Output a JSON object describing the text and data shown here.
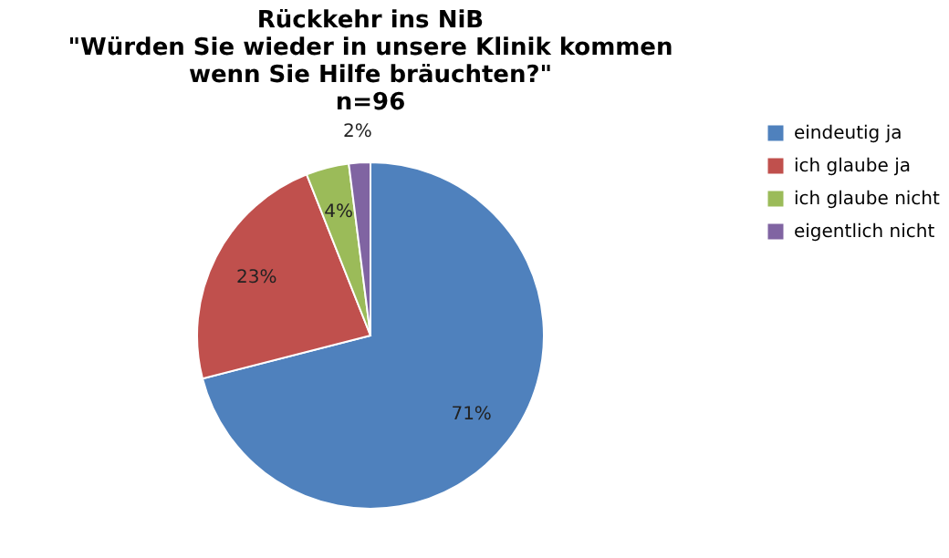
{
  "chart_data": {
    "type": "pie",
    "title": [
      "Rückkehr ins NiB",
      "\"Würden Sie wieder in unsere Klinik kommen",
      "wenn Sie Hilfe bräuchten?\"",
      "n=96"
    ],
    "categories": [
      "eindeutig ja",
      "ich glaube ja",
      "ich glaube nicht",
      "eigentlich nicht"
    ],
    "values": [
      71,
      23,
      4,
      2
    ],
    "colors": [
      "#4f81bd",
      "#c0504d",
      "#9bbb59",
      "#8064a2"
    ],
    "value_labels": [
      "71%",
      "23%",
      "4%",
      "2%"
    ],
    "legend": "right"
  }
}
